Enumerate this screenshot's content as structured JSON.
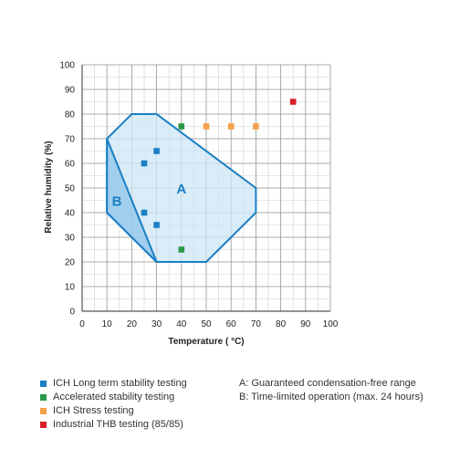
{
  "chart_data": {
    "type": "scatter",
    "xlabel": "Temperature ( °C)",
    "ylabel": "Relative humidity (%)",
    "xlim": [
      0,
      100
    ],
    "ylim": [
      0,
      100
    ],
    "xticks": [
      "0",
      "10",
      "20",
      "30",
      "40",
      "50",
      "60",
      "70",
      "80",
      "90",
      "100"
    ],
    "yticks": [
      "0",
      "10",
      "20",
      "30",
      "40",
      "50",
      "60",
      "70",
      "80",
      "90",
      "100"
    ],
    "grid": true,
    "series": [
      {
        "name": "ICH Long term stability testing",
        "color": "#1a7fc4",
        "x": [
          25,
          30,
          25,
          30
        ],
        "y": [
          60,
          65,
          40,
          35
        ]
      },
      {
        "name": "Accelerated stability testing",
        "color": "#2a9a48",
        "x": [
          40,
          40
        ],
        "y": [
          75,
          25
        ]
      },
      {
        "name": "ICH Stress testing",
        "color": "#f4a04a",
        "x": [
          50,
          60,
          70
        ],
        "y": [
          75,
          75,
          75
        ]
      },
      {
        "name": "Industrial THB testing (85/85)",
        "color": "#d9202a",
        "x": [
          85
        ],
        "y": [
          85
        ]
      }
    ],
    "regions": [
      {
        "label": "A",
        "description": "A: Guaranteed condensation-free range",
        "points": [
          [
            10,
            70
          ],
          [
            20,
            80
          ],
          [
            30,
            80
          ],
          [
            70,
            50
          ],
          [
            70,
            40
          ],
          [
            50,
            20
          ],
          [
            30,
            20
          ],
          [
            10,
            40
          ]
        ],
        "label_at": [
          40,
          50
        ]
      },
      {
        "label": "B",
        "description": "B: Time-limited operation (max. 24 hours)",
        "points": [
          [
            10,
            70
          ],
          [
            30,
            20
          ],
          [
            10,
            40
          ]
        ],
        "label_at": [
          14,
          45
        ]
      }
    ]
  }
}
